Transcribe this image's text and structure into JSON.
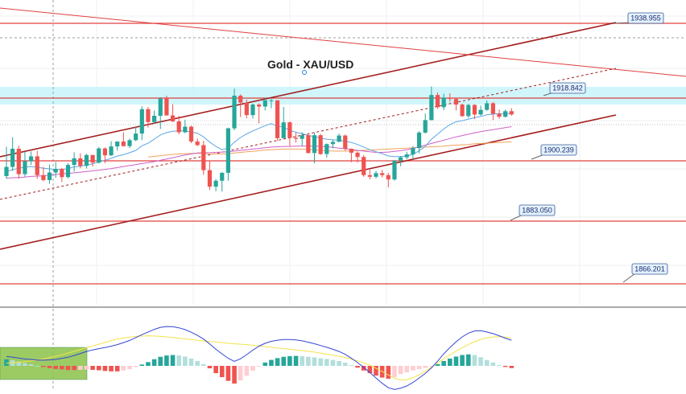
{
  "colors": {
    "bull": "#26a69a",
    "bear": "#ef5350",
    "level_line": "#e0403f",
    "channel": "#a51f1f",
    "resistance_zone": "#c8f4fb",
    "ema_fast": "#5aa7e6",
    "ema_mid": "#d061c7",
    "ema_slow": "#f1a35c",
    "macd": "#3346d6",
    "signal": "#f3e34a",
    "hist_pos_strong": "#26a69a",
    "hist_pos_weak": "#b2dfdb",
    "hist_neg_strong": "#ef5350",
    "hist_neg_weak": "#ffcdd2",
    "label_bg": "#e3f2fd",
    "label_border": "#3b5998"
  },
  "chart_data": {
    "type": "candlestick",
    "title": "Gold - XAU/USD",
    "symbol": "XAU/USD",
    "grid": true,
    "levels": [
      {
        "name": "resistance-2",
        "value": "1938.955"
      },
      {
        "name": "resistance-1",
        "value": "1918.842"
      },
      {
        "name": "pivot",
        "value": "1900.239"
      },
      {
        "name": "support-1",
        "value": "1883.050"
      },
      {
        "name": "support-2",
        "value": "1866.201"
      }
    ],
    "candles": [
      [
        1895.6,
        1898.4,
        1904.5,
        1894.8
      ],
      [
        1898.4,
        1903.9,
        1907.4,
        1897.2
      ],
      [
        1903.9,
        1896.2,
        1904.8,
        1894.8
      ],
      [
        1896.2,
        1900.1,
        1903.0,
        1895.4
      ],
      [
        1900.1,
        1901.6,
        1903.1,
        1899.0
      ],
      [
        1901.6,
        1895.9,
        1903.3,
        1894.8
      ],
      [
        1895.9,
        1894.4,
        1898.4,
        1894.0
      ],
      [
        1894.4,
        1896.7,
        1899.1,
        1893.3
      ],
      [
        1896.7,
        1897.8,
        1899.9,
        1895.1
      ],
      [
        1897.8,
        1895.3,
        1898.1,
        1893.8
      ],
      [
        1895.3,
        1899.0,
        1899.6,
        1894.9
      ],
      [
        1899.0,
        1901.0,
        1902.8,
        1897.0
      ],
      [
        1901.0,
        1898.7,
        1902.5,
        1898.0
      ],
      [
        1898.7,
        1902.0,
        1902.4,
        1897.9
      ],
      [
        1902.0,
        1899.7,
        1902.1,
        1898.5
      ],
      [
        1899.7,
        1904.0,
        1904.4,
        1899.4
      ],
      [
        1904.0,
        1901.9,
        1904.3,
        1899.5
      ],
      [
        1901.9,
        1904.6,
        1906.2,
        1901.7
      ],
      [
        1904.6,
        1906.1,
        1906.1,
        1903.3
      ],
      [
        1906.1,
        1904.7,
        1908.9,
        1904.6
      ],
      [
        1904.7,
        1906.5,
        1907.0,
        1904.1
      ],
      [
        1906.5,
        1908.5,
        1910.5,
        1906.2
      ],
      [
        1908.5,
        1915.9,
        1916.8,
        1906.5
      ],
      [
        1915.9,
        1912.0,
        1916.6,
        1910.3
      ],
      [
        1912.0,
        1913.9,
        1915.5,
        1911.5
      ],
      [
        1913.9,
        1919.1,
        1919.5,
        1909.9
      ],
      [
        1919.1,
        1914.0,
        1920.0,
        1914.0
      ],
      [
        1914.0,
        1912.2,
        1917.4,
        1912.0
      ],
      [
        1912.2,
        1908.9,
        1913.9,
        1908.3
      ],
      [
        1908.9,
        1910.6,
        1912.7,
        1908.6
      ],
      [
        1910.6,
        1906.1,
        1910.9,
        1905.6
      ],
      [
        1906.1,
        1905.0,
        1907.0,
        1904.7
      ],
      [
        1905.0,
        1897.4,
        1906.3,
        1896.0
      ],
      [
        1897.4,
        1892.4,
        1900.1,
        1891.4
      ],
      [
        1892.4,
        1894.2,
        1894.7,
        1891.0
      ],
      [
        1894.2,
        1896.6,
        1896.8,
        1890.9
      ],
      [
        1896.6,
        1910.1,
        1910.3,
        1894.2
      ],
      [
        1910.1,
        1920.0,
        1922.1,
        1909.5
      ],
      [
        1920.0,
        1917.9,
        1920.4,
        1913.5
      ],
      [
        1917.9,
        1914.1,
        1918.8,
        1913.1
      ],
      [
        1914.1,
        1917.3,
        1917.6,
        1913.1
      ],
      [
        1917.3,
        1916.7,
        1917.7,
        1911.6
      ],
      [
        1916.7,
        1918.6,
        1919.4,
        1915.5
      ],
      [
        1918.6,
        1918.6,
        1919.0,
        1916.2
      ],
      [
        1918.6,
        1907.1,
        1918.6,
        1906.3
      ],
      [
        1907.1,
        1911.9,
        1916.6,
        1907.1
      ],
      [
        1911.9,
        1907.2,
        1912.2,
        1904.8
      ],
      [
        1907.2,
        1906.9,
        1908.8,
        1905.8
      ],
      [
        1906.9,
        1908.0,
        1908.9,
        1904.7
      ],
      [
        1908.0,
        1902.6,
        1908.6,
        1902.5
      ],
      [
        1902.6,
        1908.0,
        1908.8,
        1899.5
      ],
      [
        1908.0,
        1902.3,
        1908.4,
        1902.0
      ],
      [
        1902.3,
        1905.3,
        1905.5,
        1901.2
      ],
      [
        1905.3,
        1906.0,
        1906.6,
        1904.0
      ],
      [
        1906.0,
        1907.9,
        1908.5,
        1905.9
      ],
      [
        1907.9,
        1903.9,
        1908.2,
        1903.3
      ],
      [
        1903.9,
        1902.7,
        1904.0,
        1899.8
      ],
      [
        1902.7,
        1901.4,
        1903.1,
        1899.7
      ],
      [
        1901.4,
        1895.9,
        1902.0,
        1895.4
      ],
      [
        1895.9,
        1895.4,
        1897.5,
        1894.6
      ],
      [
        1895.4,
        1896.5,
        1897.2,
        1894.9
      ],
      [
        1896.5,
        1895.9,
        1897.5,
        1895.2
      ],
      [
        1895.9,
        1894.6,
        1896.6,
        1892.2
      ],
      [
        1894.6,
        1900.3,
        1900.5,
        1894.2
      ],
      [
        1900.3,
        1901.3,
        1901.7,
        1898.6
      ],
      [
        1901.3,
        1902.2,
        1903.0,
        1900.7
      ],
      [
        1902.2,
        1904.1,
        1904.7,
        1900.8
      ],
      [
        1904.1,
        1908.8,
        1909.2,
        1902.5
      ],
      [
        1908.8,
        1912.6,
        1914.6,
        1908.5
      ],
      [
        1912.6,
        1920.2,
        1922.8,
        1912.5
      ],
      [
        1920.2,
        1916.5,
        1921.0,
        1916.0
      ],
      [
        1916.5,
        1919.4,
        1920.6,
        1915.6
      ],
      [
        1919.4,
        1919.0,
        1920.7,
        1918.1
      ],
      [
        1919.0,
        1917.3,
        1919.3,
        1915.5
      ],
      [
        1917.3,
        1913.8,
        1917.6,
        1913.5
      ],
      [
        1913.8,
        1917.2,
        1917.5,
        1913.3
      ],
      [
        1917.2,
        1914.3,
        1917.4,
        1912.9
      ],
      [
        1914.3,
        1915.7,
        1917.0,
        1913.9
      ],
      [
        1915.7,
        1917.7,
        1918.6,
        1915.4
      ],
      [
        1917.7,
        1914.5,
        1918.1,
        1912.6
      ],
      [
        1914.5,
        1913.6,
        1915.8,
        1913.0
      ],
      [
        1913.6,
        1915.3,
        1915.8,
        1913.4
      ],
      [
        1915.3,
        1914.3,
        1916.2,
        1913.9
      ]
    ],
    "overlays": {
      "ema_fast": [
        1897.0,
        1897.5,
        1898.0,
        1898.3,
        1898.5,
        1898.3,
        1898.0,
        1897.8,
        1897.6,
        1897.6,
        1897.9,
        1898.4,
        1898.6,
        1899.0,
        1899.3,
        1899.9,
        1900.4,
        1901.0,
        1901.7,
        1902.1,
        1902.7,
        1903.4,
        1904.8,
        1905.6,
        1906.8,
        1908.1,
        1908.8,
        1909.2,
        1909.3,
        1909.3,
        1909.0,
        1908.6,
        1907.5,
        1905.9,
        1904.6,
        1903.6,
        1904.1,
        1905.9,
        1907.3,
        1908.4,
        1909.3,
        1910.1,
        1910.9,
        1911.5,
        1910.8,
        1910.4,
        1909.5,
        1908.9,
        1908.5,
        1907.9,
        1907.6,
        1907.1,
        1906.8,
        1906.6,
        1906.5,
        1906.2,
        1905.8,
        1905.2,
        1904.4,
        1903.6,
        1903.0,
        1902.4,
        1901.7,
        1901.5,
        1901.5,
        1901.7,
        1902.2,
        1903.3,
        1904.6,
        1906.8,
        1908.3,
        1909.9,
        1911.2,
        1912.1,
        1912.4,
        1912.9,
        1913.3,
        1913.7,
        1914.2,
        1914.4,
        1914.5,
        1914.6,
        1914.6
      ],
      "ema_mid": [
        1895.0,
        1895.1,
        1895.2,
        1895.3,
        1895.5,
        1895.6,
        1895.7,
        1895.9,
        1896.1,
        1896.3,
        1896.4,
        1896.6,
        1896.8,
        1897.0,
        1897.2,
        1897.4,
        1897.6,
        1897.9,
        1898.2,
        1898.5,
        1898.8,
        1899.1,
        1899.4,
        1899.7,
        1900.0,
        1900.4,
        1900.8,
        1901.2,
        1901.6,
        1902.0,
        1902.3,
        1902.6,
        1902.7,
        1902.7,
        1902.8,
        1902.9,
        1903.0,
        1903.2,
        1903.4,
        1903.6,
        1903.8,
        1904.0,
        1904.2,
        1904.4,
        1904.5,
        1904.6,
        1904.6,
        1904.7,
        1904.7,
        1904.7,
        1904.7,
        1904.6,
        1904.5,
        1904.3,
        1904.1,
        1903.9,
        1903.7,
        1903.4,
        1903.2,
        1903.0,
        1902.8,
        1902.8,
        1902.9,
        1903.1,
        1903.3,
        1903.6,
        1904.0,
        1904.5,
        1905.0,
        1905.5,
        1906.0,
        1906.5,
        1907.0,
        1907.5,
        1907.9,
        1908.3,
        1908.7,
        1909.1,
        1909.4,
        1909.7,
        1910.0,
        1910.3,
        1910.6
      ],
      "ema_slow": [
        null,
        null,
        null,
        null,
        null,
        null,
        null,
        null,
        null,
        null,
        null,
        null,
        null,
        null,
        null,
        null,
        null,
        null,
        null,
        null,
        null,
        null,
        null,
        1901.4,
        1901.6,
        1901.8,
        1902.0,
        1902.2,
        1902.3,
        1902.4,
        1902.5,
        1902.5,
        1902.4,
        1902.3,
        1902.3,
        1902.3,
        1902.4,
        1902.6,
        1902.8,
        1903.0,
        1903.1,
        1903.3,
        1903.5,
        1903.6,
        1903.7,
        1903.8,
        1903.8,
        1903.8,
        1903.8,
        1903.7,
        1903.6,
        1903.4,
        1903.3,
        1903.2,
        1903.2,
        1903.2,
        1903.2,
        1903.3,
        1903.4,
        1903.5,
        1903.6,
        1903.7,
        1903.8,
        1903.9,
        1904.0,
        1904.1,
        1904.2,
        1904.3,
        1904.4,
        1904.5,
        1904.6,
        1904.7,
        1904.9,
        1905.0,
        1905.1,
        1905.2,
        1905.4,
        1905.5,
        1905.6,
        1905.7,
        1905.8,
        1905.9,
        1906.0
      ]
    },
    "macd": {
      "macd": [
        4.2,
        3.9,
        3.5,
        3.1,
        2.9,
        2.6,
        2.6,
        2.7,
        2.9,
        3.4,
        3.9,
        4.7,
        5.6,
        6.5,
        7.2,
        7.8,
        8.3,
        8.9,
        9.6,
        10.5,
        11.5,
        12.8,
        14.1,
        15.3,
        16.5,
        17.4,
        17.8,
        17.7,
        17.2,
        16.4,
        15.2,
        13.8,
        12.1,
        9.9,
        7.5,
        5.4,
        3.4,
        2.0,
        3.2,
        5.1,
        7.1,
        8.9,
        10.2,
        11.1,
        11.6,
        11.9,
        11.9,
        11.7,
        11.3,
        10.7,
        10.0,
        9.2,
        8.4,
        7.5,
        6.5,
        5.2,
        3.4,
        1.5,
        -0.7,
        -3.0,
        -5.5,
        -7.9,
        -9.9,
        -10.7,
        -10.1,
        -9.1,
        -7.5,
        -5.5,
        -3.4,
        -0.9,
        2.1,
        5.4,
        8.3,
        10.9,
        13.1,
        14.8,
        15.8,
        15.9,
        15.3,
        14.6,
        13.6,
        12.5,
        11.6
      ],
      "signal": [
        1.2,
        1.4,
        1.6,
        1.9,
        2.2,
        2.6,
        3.1,
        3.7,
        4.3,
        5.0,
        5.8,
        6.6,
        7.4,
        8.2,
        9.0,
        9.8,
        10.6,
        11.4,
        12.1,
        12.6,
        13.0,
        13.3,
        13.5,
        13.6,
        13.5,
        13.3,
        13.1,
        12.8,
        12.5,
        12.2,
        11.9,
        11.6,
        11.3,
        11.0,
        10.8,
        10.5,
        10.2,
        10.0,
        9.8,
        9.6,
        9.3,
        9.0,
        8.7,
        8.4,
        8.1,
        7.8,
        7.5,
        7.2,
        6.9,
        6.6,
        6.2,
        5.8,
        5.3,
        4.8,
        4.3,
        3.8,
        3.1,
        2.3,
        1.4,
        0.3,
        -1.1,
        -2.6,
        -4.1,
        -5.6,
        -6.4,
        -6.2,
        -5.4,
        -4.0,
        -2.4,
        -0.6,
        1.3,
        3.2,
        5.0,
        6.7,
        8.2,
        9.6,
        10.9,
        12.0,
        12.7,
        13.1,
        13.2,
        13.0,
        12.6
      ],
      "histogram": [
        3.0,
        2.5,
        1.9,
        1.2,
        0.7,
        0.0,
        -0.5,
        -1.0,
        -1.4,
        -1.6,
        -1.9,
        -1.9,
        -1.8,
        -1.7,
        -1.8,
        -2.0,
        -2.3,
        -2.5,
        -2.5,
        -2.1,
        -1.5,
        -0.5,
        0.6,
        1.7,
        3.0,
        4.1,
        4.7,
        4.9,
        4.7,
        4.2,
        3.3,
        2.2,
        0.8,
        -1.1,
        -3.3,
        -5.1,
        -6.8,
        -8.0,
        -6.6,
        -4.5,
        -2.2,
        -0.1,
        1.5,
        2.7,
        3.5,
        4.1,
        4.4,
        4.5,
        4.4,
        4.1,
        3.8,
        3.4,
        3.1,
        2.7,
        2.2,
        1.4,
        0.3,
        -0.8,
        -2.1,
        -3.3,
        -4.4,
        -5.3,
        -5.8,
        -5.1,
        -3.7,
        -2.9,
        -2.1,
        -1.5,
        -1.0,
        -0.3,
        0.8,
        2.2,
        3.3,
        4.2,
        4.9,
        5.2,
        4.9,
        3.9,
        2.6,
        1.5,
        0.4,
        -0.5,
        -1.0
      ]
    }
  }
}
